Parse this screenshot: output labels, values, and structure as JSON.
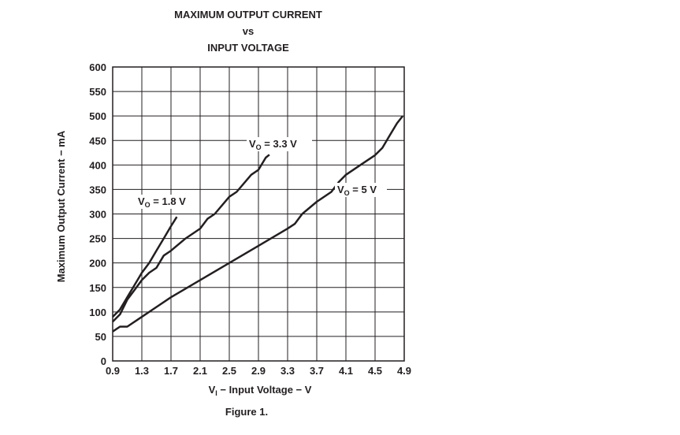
{
  "chart_data": {
    "type": "line",
    "title": [
      "MAXIMUM OUTPUT CURRENT",
      "vs",
      "INPUT VOLTAGE"
    ],
    "x_label": {
      "base": "V",
      "sub": "I",
      "text": " − Input Voltage − V"
    },
    "y_label": "Maximum Output Current − mA",
    "caption": "Figure 1.",
    "xlim": [
      0.9,
      4.9
    ],
    "xticks": [
      0.9,
      1.3,
      1.7,
      2.1,
      2.5,
      2.9,
      3.3,
      3.7,
      4.1,
      4.5,
      4.9
    ],
    "ylim": [
      0,
      600
    ],
    "yticks": [
      0,
      50,
      100,
      150,
      200,
      250,
      300,
      350,
      400,
      450,
      500,
      550,
      600
    ],
    "grid": true,
    "series": [
      {
        "color": "#231f20",
        "x": [
          0.9,
          1.0,
          1.1,
          1.2,
          1.3,
          1.4,
          1.5,
          1.6,
          1.7,
          1.78
        ],
        "values": [
          90,
          105,
          130,
          155,
          180,
          200,
          225,
          250,
          275,
          294
        ]
      },
      {
        "color": "#231f20",
        "x": [
          0.9,
          1.0,
          1.1,
          1.2,
          1.3,
          1.4,
          1.5,
          1.6,
          1.7,
          1.9,
          2.1,
          2.2,
          2.3,
          2.5,
          2.6,
          2.8,
          2.9,
          3.0,
          3.05
        ],
        "values": [
          80,
          95,
          125,
          145,
          165,
          180,
          190,
          215,
          225,
          250,
          270,
          290,
          300,
          335,
          345,
          380,
          390,
          415,
          421
        ]
      },
      {
        "color": "#231f20",
        "x": [
          0.9,
          1.0,
          1.1,
          1.3,
          1.5,
          1.7,
          2.1,
          2.5,
          2.9,
          3.3,
          3.4,
          3.5,
          3.7,
          3.9,
          4.0,
          4.1,
          4.3,
          4.5,
          4.6,
          4.7,
          4.8,
          4.88
        ],
        "values": [
          60,
          70,
          70,
          90,
          110,
          130,
          165,
          200,
          235,
          270,
          280,
          300,
          325,
          345,
          365,
          380,
          400,
          420,
          435,
          460,
          485,
          500
        ]
      }
    ],
    "annotations": [
      {
        "base": "V",
        "sub": "O",
        "text": " = 1.8 V"
      },
      {
        "base": "V",
        "sub": "O",
        "text": " = 3.3 V"
      },
      {
        "base": "V",
        "sub": "O",
        "text": " = 5 V"
      }
    ]
  }
}
